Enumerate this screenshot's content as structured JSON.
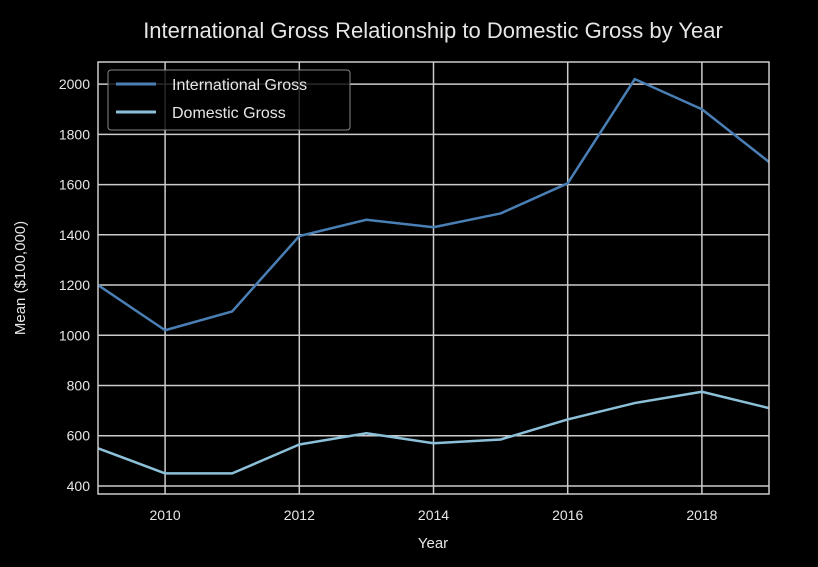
{
  "chart_data": {
    "type": "line",
    "title": "International Gross Relationship to Domestic Gross by Year",
    "xlabel": "Year",
    "ylabel": "Mean ($100,000)",
    "x": [
      2009,
      2010,
      2011,
      2012,
      2013,
      2014,
      2015,
      2016,
      2017,
      2018,
      2019
    ],
    "xlim": [
      2009,
      2019
    ],
    "ylim": [
      368,
      2088
    ],
    "xticks": [
      2010,
      2012,
      2014,
      2016,
      2018
    ],
    "yticks": [
      400,
      600,
      800,
      1000,
      1200,
      1400,
      1600,
      1800,
      2000
    ],
    "grid": true,
    "legend_position": "top-left",
    "series": [
      {
        "name": "International Gross",
        "color": "#4a7fb5",
        "values": [
          1200,
          1020,
          1095,
          1395,
          1460,
          1430,
          1485,
          1605,
          2020,
          1900,
          1690
        ]
      },
      {
        "name": "Domestic Gross",
        "color": "#8cc0d8",
        "values": [
          550,
          450,
          450,
          565,
          610,
          570,
          585,
          665,
          730,
          775,
          710
        ]
      }
    ]
  }
}
